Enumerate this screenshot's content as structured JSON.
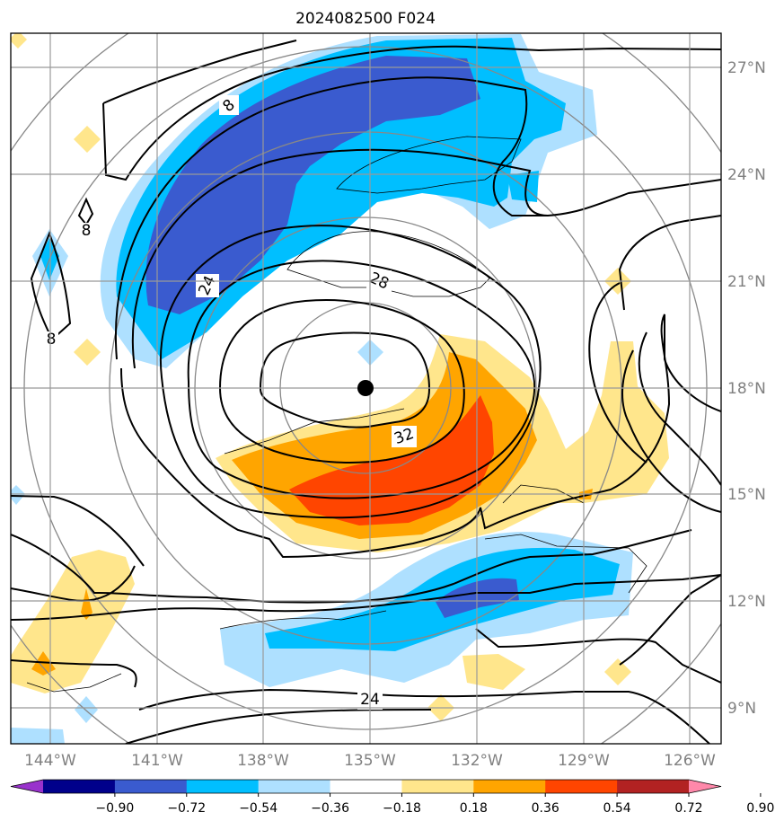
{
  "title": "2024082500 F024",
  "chart_data": {
    "type": "contour map",
    "title": "2024082500 F024",
    "projection": "stereographic (grid 144°W–126°W, 9°N–27°N)",
    "x_tick_labels": [
      "144°W",
      "141°W",
      "138°W",
      "135°W",
      "132°W",
      "129°W",
      "126°W"
    ],
    "y_tick_labels": [
      "27°N",
      "24°N",
      "21°N",
      "18°N",
      "15°N",
      "12°N",
      "9°N"
    ],
    "x_ticks_lon": [
      -144,
      -141,
      -138,
      -135,
      -132,
      -129,
      -126
    ],
    "y_ticks_lat": [
      27,
      24,
      21,
      18,
      15,
      12,
      9
    ],
    "lon_range": [
      -145,
      -125
    ],
    "lat_range": [
      8,
      28
    ],
    "center": {
      "lon": -135,
      "lat": 18,
      "marker": "black dot"
    },
    "filled_field": {
      "colorbar_levels": [
        -0.9,
        -0.72,
        -0.54,
        -0.36,
        -0.18,
        0.18,
        0.36,
        0.54,
        0.72,
        0.9
      ],
      "colorbar_labels": [
        "−0.90",
        "−0.72",
        "−0.54",
        "−0.36",
        "−0.18",
        "0.18",
        "0.36",
        "0.54",
        "0.72",
        "0.90"
      ],
      "colors": [
        "#9932cc",
        "#00008b",
        "#3a5bcf",
        "#00bfff",
        "#aee0ff",
        "#ffffff",
        "#ffe68c",
        "#ffa500",
        "#ff4500",
        "#b22222",
        "#ff88aa"
      ],
      "extend": "both",
      "features": [
        {
          "name": "negative band NW",
          "min_value": -0.72,
          "location": "arc from 139°W,21°N to 132°W,27°N"
        },
        {
          "name": "positive band S",
          "max_value": 0.72,
          "location": "arc from 138°W,16°N to 130°W,17°N"
        },
        {
          "name": "negative band SE",
          "min_value": -0.72,
          "location": "131°W–128°W, 11°N–14°N"
        }
      ]
    },
    "line_contours": {
      "labeled_values": [
        8,
        8,
        8,
        24,
        28,
        32,
        24
      ],
      "label_texts": [
        "8",
        "8",
        "8",
        "24",
        "28",
        "32",
        "24"
      ],
      "notes": "closed wind-speed contours around the center, innermost 32"
    },
    "range_rings": "gray concentric circles about the center",
    "grid": true
  }
}
